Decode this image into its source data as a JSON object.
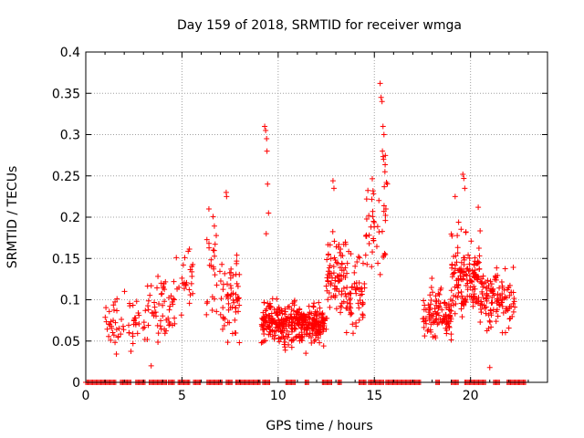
{
  "chart_data": {
    "type": "scatter",
    "title": "Day 159 of 2018, SRMTID for receiver wmga",
    "xlabel": "GPS time / hours",
    "ylabel": "SRMTID / TECUs",
    "xlim": [
      0,
      24
    ],
    "ylim": [
      0,
      0.4
    ],
    "xticks": [
      0,
      5,
      10,
      15,
      20
    ],
    "yticks": [
      0,
      0.05,
      0.1,
      0.15,
      0.2,
      0.25,
      0.3,
      0.35,
      0.4
    ],
    "ytick_labels": [
      "0",
      "0.05",
      "0.1",
      "0.15",
      "0.2",
      "0.25",
      "0.3",
      "0.35",
      "0.4"
    ],
    "grid": true,
    "marker": "+",
    "color": "#ff0000",
    "zero_ranges": [
      [
        0.0,
        1.6
      ],
      [
        1.8,
        2.4
      ],
      [
        2.6,
        3.1
      ],
      [
        3.3,
        4.2
      ],
      [
        4.3,
        4.6
      ],
      [
        4.8,
        5.4
      ],
      [
        5.6,
        6.0
      ],
      [
        6.3,
        7.1
      ],
      [
        7.3,
        7.6
      ],
      [
        7.8,
        9.1
      ],
      [
        9.2,
        9.6
      ],
      [
        10.4,
        10.9
      ],
      [
        11.4,
        11.6
      ],
      [
        12.3,
        12.8
      ],
      [
        13.1,
        13.3
      ],
      [
        14.2,
        14.6
      ],
      [
        14.7,
        15.5
      ],
      [
        15.6,
        17.4
      ],
      [
        18.2,
        18.4
      ],
      [
        19.0,
        19.4
      ],
      [
        19.7,
        20.8
      ],
      [
        21.2,
        21.5
      ],
      [
        21.9,
        22.5
      ],
      [
        22.5,
        22.9
      ]
    ],
    "clusters": [
      {
        "x": [
          1.0,
          3.2
        ],
        "mean": 0.07,
        "spread": 0.025,
        "n": 60
      },
      {
        "x": [
          3.2,
          4.7
        ],
        "mean": 0.09,
        "spread": 0.035,
        "n": 55
      },
      {
        "x": [
          4.7,
          5.6
        ],
        "mean": 0.12,
        "spread": 0.03,
        "n": 25
      },
      {
        "x": [
          6.2,
          7.0
        ],
        "mean": 0.14,
        "spread": 0.05,
        "n": 25
      },
      {
        "x": [
          7.0,
          8.0
        ],
        "mean": 0.1,
        "spread": 0.04,
        "n": 60
      },
      {
        "x": [
          9.1,
          10.0
        ],
        "mean": 0.075,
        "spread": 0.02,
        "n": 90
      },
      {
        "x": [
          10.0,
          12.5
        ],
        "mean": 0.07,
        "spread": 0.02,
        "n": 280
      },
      {
        "x": [
          12.5,
          13.5
        ],
        "mean": 0.13,
        "spread": 0.04,
        "n": 80
      },
      {
        "x": [
          13.5,
          14.5
        ],
        "mean": 0.11,
        "spread": 0.04,
        "n": 60
      },
      {
        "x": [
          14.5,
          15.7
        ],
        "mean": 0.19,
        "spread": 0.06,
        "n": 45
      },
      {
        "x": [
          17.5,
          19.0
        ],
        "mean": 0.085,
        "spread": 0.025,
        "n": 110
      },
      {
        "x": [
          19.0,
          20.5
        ],
        "mean": 0.13,
        "spread": 0.04,
        "n": 140
      },
      {
        "x": [
          20.5,
          22.3
        ],
        "mean": 0.1,
        "spread": 0.03,
        "n": 120
      }
    ],
    "spikes": [
      [
        9.3,
        0.31
      ],
      [
        9.35,
        0.305
      ],
      [
        9.4,
        0.295
      ],
      [
        9.42,
        0.28
      ],
      [
        9.45,
        0.24
      ],
      [
        9.5,
        0.205
      ],
      [
        9.38,
        0.18
      ],
      [
        15.3,
        0.362
      ],
      [
        15.35,
        0.345
      ],
      [
        15.4,
        0.34
      ],
      [
        15.45,
        0.31
      ],
      [
        15.5,
        0.3
      ],
      [
        15.42,
        0.28
      ],
      [
        15.48,
        0.27
      ],
      [
        15.55,
        0.255
      ],
      [
        15.6,
        0.21
      ],
      [
        15.5,
        0.207
      ],
      [
        12.85,
        0.244
      ],
      [
        12.9,
        0.235
      ],
      [
        19.6,
        0.252
      ],
      [
        19.65,
        0.247
      ],
      [
        19.7,
        0.235
      ],
      [
        6.4,
        0.21
      ],
      [
        7.3,
        0.23
      ],
      [
        7.32,
        0.225
      ],
      [
        14.6,
        0.222
      ],
      [
        20.4,
        0.212
      ],
      [
        19.2,
        0.225
      ],
      [
        21.0,
        0.018
      ],
      [
        3.4,
        0.02
      ]
    ]
  }
}
